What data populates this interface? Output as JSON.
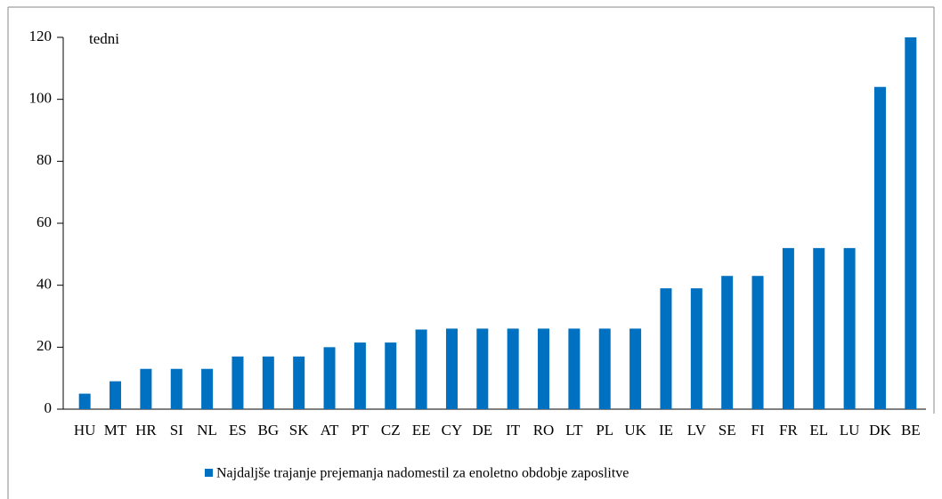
{
  "chart_data": {
    "type": "bar",
    "y_label": "tedni",
    "categories": [
      "HU",
      "MT",
      "HR",
      "SI",
      "NL",
      "ES",
      "BG",
      "SK",
      "AT",
      "PT",
      "CZ",
      "EE",
      "CY",
      "DE",
      "IT",
      "RO",
      "LT",
      "PL",
      "UK",
      "IE",
      "LV",
      "SE",
      "FI",
      "FR",
      "EL",
      "LU",
      "DK",
      "BE"
    ],
    "series": [
      {
        "name": "Najdaljše trajanje prejemanja nadomestil za enoletno obdobje zaposlitve",
        "color": "#0070c0",
        "values": [
          5,
          9,
          13,
          13,
          13,
          17,
          17,
          17,
          20,
          21.5,
          21.5,
          25.7,
          26,
          26,
          26,
          26,
          26,
          26,
          26,
          39,
          39,
          43,
          43,
          52,
          52,
          52,
          104,
          120
        ]
      }
    ],
    "ylim": [
      0,
      120
    ],
    "yticks": [
      0,
      20,
      40,
      60,
      80,
      100,
      120
    ]
  }
}
